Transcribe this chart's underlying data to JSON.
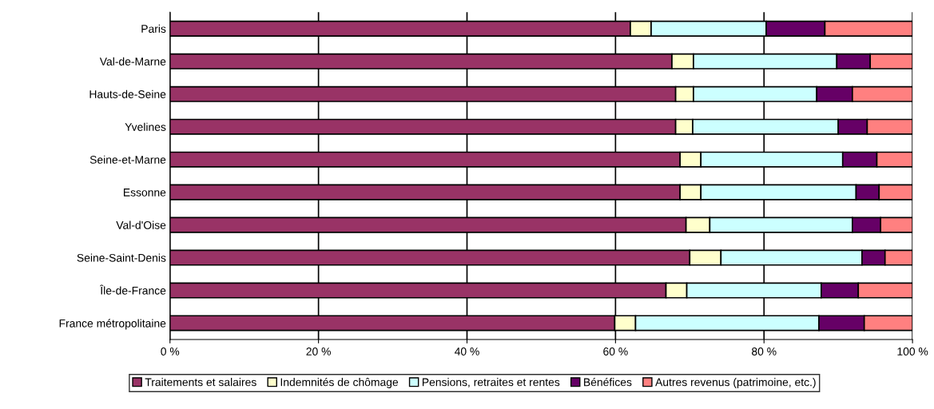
{
  "chart_data": {
    "type": "bar",
    "orientation": "horizontal",
    "stacked": true,
    "categories": [
      "Paris",
      "Val-de-Marne",
      "Hauts-de-Seine",
      "Yvelines",
      "Seine-et-Marne",
      "Essonne",
      "Val-d'Oise",
      "Seine-Saint-Denis",
      "Île-de-France",
      "France métropolitaine"
    ],
    "series": [
      {
        "name": "Traitements et salaires",
        "color": "#993366",
        "values": [
          62.0,
          67.6,
          68.1,
          68.1,
          68.7,
          68.7,
          69.5,
          70.0,
          66.8,
          59.9
        ]
      },
      {
        "name": "Indemnités de chômage",
        "color": "#ffffcc",
        "values": [
          2.8,
          2.9,
          2.4,
          2.3,
          2.8,
          2.8,
          3.2,
          4.2,
          2.8,
          2.8
        ]
      },
      {
        "name": "Pensions, retraites et rentes",
        "color": "#ccffff",
        "values": [
          15.5,
          19.3,
          16.6,
          19.6,
          19.1,
          20.9,
          19.2,
          19.0,
          18.1,
          24.7
        ]
      },
      {
        "name": "Bénéfices",
        "color": "#660066",
        "values": [
          7.9,
          4.5,
          4.8,
          3.9,
          4.6,
          3.1,
          3.8,
          3.1,
          5.0,
          6.1
        ]
      },
      {
        "name": "Autres revenus (patrimoine, etc.)",
        "color": "#ff8080",
        "values": [
          11.8,
          5.7,
          8.1,
          6.1,
          4.8,
          4.5,
          4.3,
          3.7,
          7.3,
          6.5
        ]
      }
    ],
    "xlim": [
      0,
      100
    ],
    "xticks": [
      {
        "value": 0,
        "label": "0 %"
      },
      {
        "value": 20,
        "label": "20 %"
      },
      {
        "value": 40,
        "label": "40 %"
      },
      {
        "value": 60,
        "label": "60 %"
      },
      {
        "value": 80,
        "label": "80 %"
      },
      {
        "value": 100,
        "label": "100 %"
      }
    ],
    "grid": "x",
    "legend": "bottom"
  }
}
